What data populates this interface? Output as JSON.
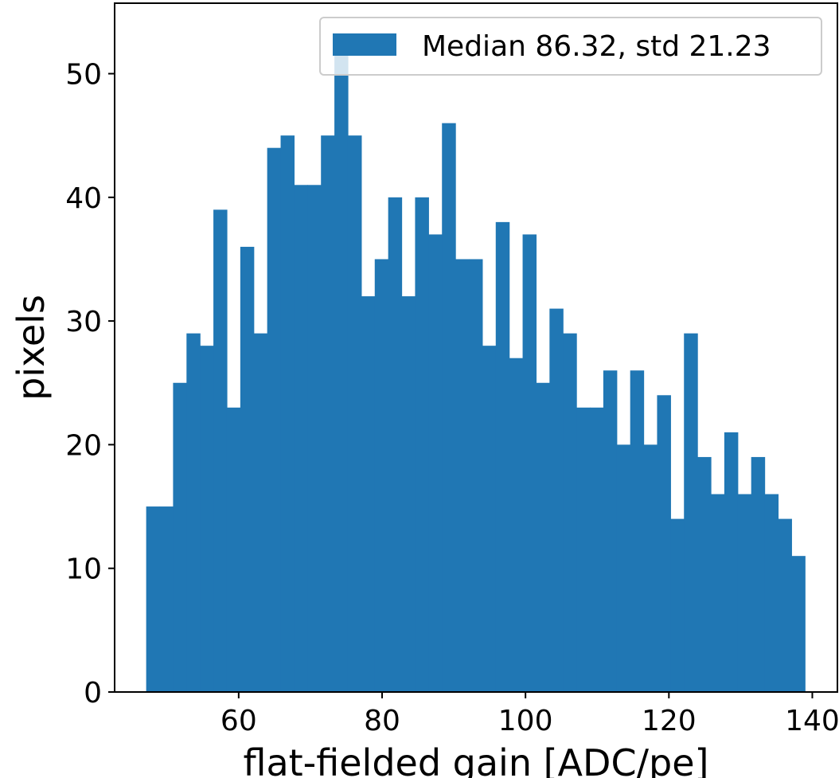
{
  "chart_data": {
    "type": "bar",
    "xlabel": "flat-fielded gain [ADC/pe]",
    "ylabel": "pixels",
    "xlim": [
      42.7,
      143.5
    ],
    "ylim": [
      0,
      55.7
    ],
    "xticks": [
      60,
      80,
      100,
      120,
      140
    ],
    "yticks": [
      0,
      10,
      20,
      30,
      40,
      50
    ],
    "bin_start": 47.1,
    "bin_width": 1.875,
    "legend_position": "top-right",
    "grid": false,
    "series": [
      {
        "name": "Median 86.32, std 21.23",
        "color": "#2077b4",
        "values": [
          15,
          15,
          25,
          29,
          28,
          39,
          23,
          36,
          29,
          44,
          45,
          41,
          41,
          45,
          53,
          45,
          32,
          35,
          40,
          32,
          40,
          37,
          46,
          35,
          35,
          28,
          38,
          27,
          37,
          25,
          31,
          29,
          23,
          23,
          26,
          20,
          26,
          20,
          24,
          14,
          29,
          19,
          16,
          21,
          16,
          19,
          16,
          14,
          11
        ]
      }
    ]
  }
}
